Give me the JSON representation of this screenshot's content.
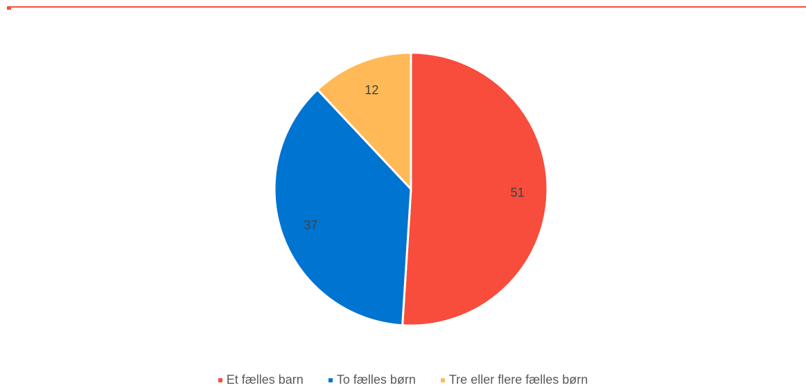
{
  "chart_data": {
    "type": "pie",
    "title": "",
    "categories": [
      "Et fælles barn",
      "To fælles børn",
      "Tre eller flere fælles børn"
    ],
    "values": [
      51,
      37,
      12
    ],
    "data_labels": [
      "51",
      "37",
      "12"
    ],
    "colors": [
      "#f84c3c",
      "#0074d1",
      "#ffba57"
    ],
    "legend_position": "bottom"
  }
}
